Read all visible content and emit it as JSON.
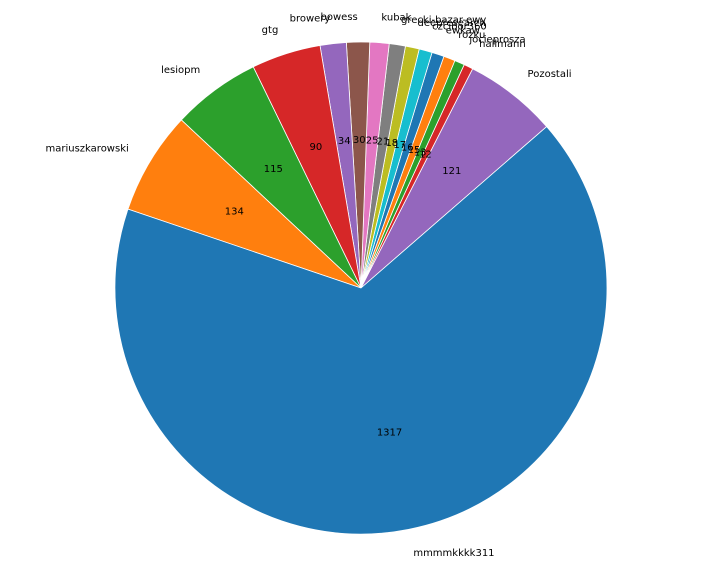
{
  "chart_data": {
    "type": "pie",
    "title": "",
    "start_angle_deg": 41,
    "direction": "counterclockwise",
    "slices": [
      {
        "label": "Pozostali",
        "value": 121,
        "color": "#9467bd"
      },
      {
        "label": "hallmann",
        "value": 12,
        "color": "#d62728"
      },
      {
        "label": "jocieprosza",
        "value": 13,
        "color": "#2ca02c"
      },
      {
        "label": "rozku",
        "value": 15,
        "color": "#ff7f0e"
      },
      {
        "label": "ewkaw",
        "value": 16,
        "color": "#1f77b4"
      },
      {
        "label": "czcibor360",
        "value": 17,
        "color": "#17becf"
      },
      {
        "label": "deepresearch",
        "value": 18,
        "color": "#bcbd22"
      },
      {
        "label": "grecki-bazar-ewy",
        "value": 21,
        "color": "#7f7f7f"
      },
      {
        "label": "kubak",
        "value": 25,
        "color": "#e377c2"
      },
      {
        "label": "bowess",
        "value": 30,
        "color": "#8c564b"
      },
      {
        "label": "browery",
        "value": 34,
        "color": "#9467bd"
      },
      {
        "label": "gtg",
        "value": 90,
        "color": "#d62728"
      },
      {
        "label": "lesiopm",
        "value": 115,
        "color": "#2ca02c"
      },
      {
        "label": "mariuszkarowski",
        "value": 134,
        "color": "#ff7f0e"
      },
      {
        "label": "mmmmkkkk311",
        "value": 1317,
        "color": "#1f77b4"
      }
    ]
  }
}
